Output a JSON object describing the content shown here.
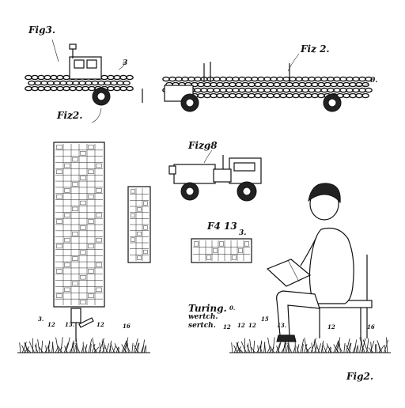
{
  "labels": {
    "fig_top_left": "Fig3.",
    "fig_top_mid": "Fiz2.",
    "fig_top_right": "Fiz 2.",
    "fig_middle": "Fizg8",
    "fig_panel": "F4 13",
    "fig_bottom_right": "Fig2.",
    "ref_truck_small": "3",
    "ref_truck_long": "0.",
    "ref_panel": "3.",
    "sign_refs": [
      "3.",
      "12",
      "13.",
      "12",
      "16"
    ],
    "caption_lines": [
      "Turing.",
      "wertch.",
      "sertch."
    ],
    "caption_marks": [
      "0.",
      "12",
      "12",
      "12",
      "15",
      "13.",
      "12",
      "16"
    ]
  },
  "colors": {
    "ink": "#111111",
    "paper": "#ffffff",
    "grass": "#1a1a1a"
  },
  "icons": [
    "chain-truck-small",
    "chain-truck-long",
    "tall-grid-sign",
    "narrow-grid-panel",
    "tractor",
    "grid-panel",
    "boy-reading-on-bench",
    "grass-patch"
  ]
}
